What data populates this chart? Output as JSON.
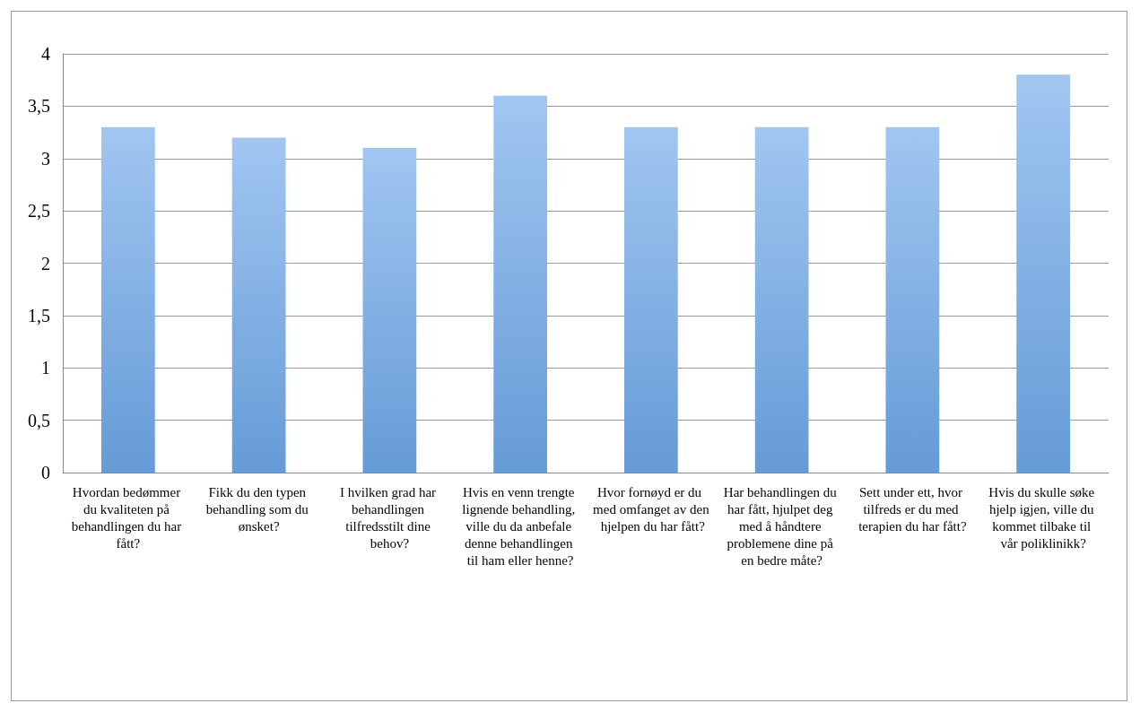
{
  "chart_data": {
    "type": "bar",
    "categories": [
      "Hvordan bedømmer du kvaliteten på behandlingen du har fått?",
      "Fikk du den typen behandling som du ønsket?",
      "I hvilken grad har behandlingen tilfredsstilt dine behov?",
      "Hvis en venn trengte lignende behandling, ville du da anbefale denne behandlingen til ham eller henne?",
      "Hvor fornøyd er du med omfanget av den hjelpen du har fått?",
      "Har behandlingen du har fått, hjulpet deg med å håndtere problemene dine på en bedre måte?",
      "Sett under ett, hvor tilfreds er du med terapien du har fått?",
      "Hvis du skulle søke hjelp igjen, ville du kommet tilbake til vår poliklinikk?"
    ],
    "values": [
      3.3,
      3.2,
      3.1,
      3.6,
      3.3,
      3.3,
      3.3,
      3.8
    ],
    "color": "#6ea8ea",
    "ylim": [
      0,
      4
    ],
    "yticks": [
      0,
      {
        "value": 0.5,
        "label": "0,5"
      },
      1,
      {
        "value": 1.5,
        "label": "1,5"
      },
      2,
      {
        "value": 2.5,
        "label": "2,5"
      },
      3,
      {
        "value": 3.5,
        "label": "3,5"
      },
      4
    ],
    "grid": "y"
  }
}
